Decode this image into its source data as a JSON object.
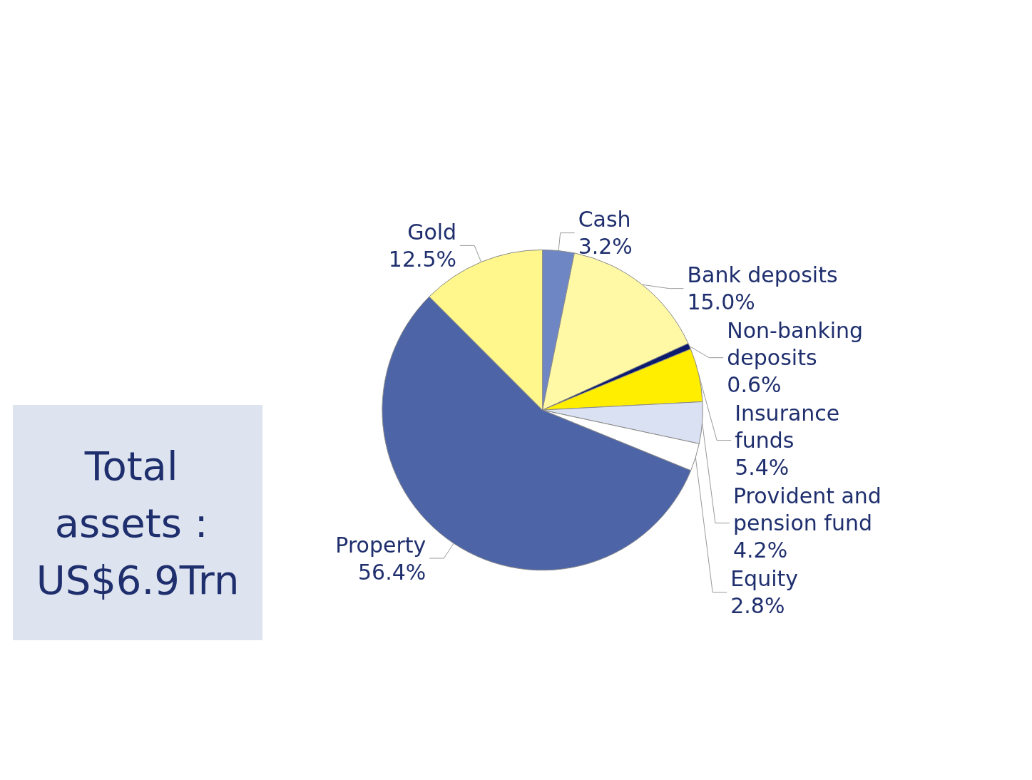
{
  "chart_data": {
    "type": "pie",
    "categories": [
      "Cash",
      "Bank deposits",
      "Non-banking deposits",
      "Insurance funds",
      "Provident and pension fund",
      "Equity",
      "Property",
      "Gold"
    ],
    "values": [
      3.2,
      15.0,
      0.6,
      5.4,
      4.2,
      2.8,
      56.4,
      12.5
    ],
    "value_labels": [
      "3.2%",
      "15.0%",
      "0.6%",
      "5.4%",
      "4.2%",
      "2.8%",
      "56.4%",
      "12.5%"
    ],
    "colors": [
      "#6f86c4",
      "#fff9a6",
      "#0c1b6b",
      "#ffee00",
      "#d9e1f2",
      "#ffffff",
      "#4d64a6",
      "#fff78c"
    ],
    "annotations": [
      "Total assets : US$6.9Trn"
    ],
    "legend": false
  }
}
